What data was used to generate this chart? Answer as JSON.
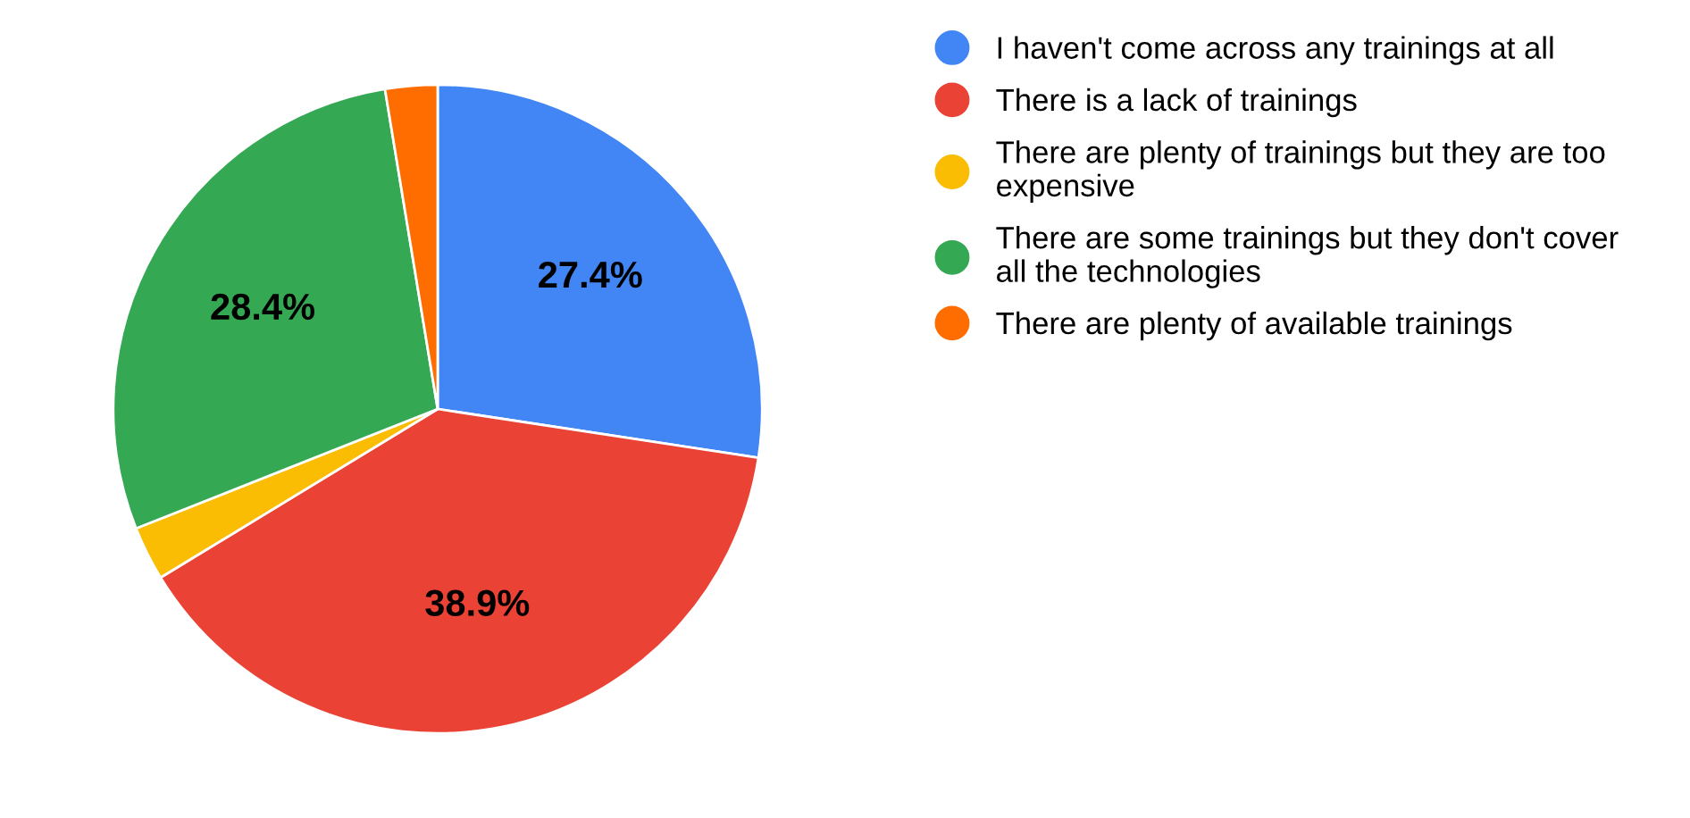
{
  "chart_data": {
    "type": "pie",
    "categories": [
      "I haven't come across any trainings at all",
      "There is a lack of trainings",
      "There are plenty of trainings but they are too\nexpensive",
      "There are some trainings but they don't cover\nall the technologies",
      "There are plenty of available trainings"
    ],
    "values": [
      27.4,
      38.9,
      2.7,
      28.4,
      2.6
    ],
    "colors": [
      "#4285f4",
      "#ea4335",
      "#fbbc04",
      "#34a853",
      "#ff6d01"
    ],
    "value_labels": [
      "27.4%",
      "38.9%",
      null,
      "28.4%",
      null
    ],
    "legend": "top right"
  }
}
